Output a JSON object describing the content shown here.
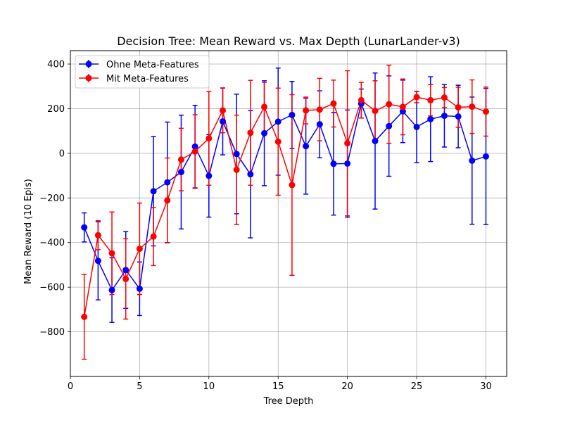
{
  "chart_data": {
    "type": "line",
    "title": "Decision Tree: Mean Reward vs. Max Depth (LunarLander-v3)",
    "xlabel": "Tree Depth",
    "ylabel": "Mean Reward (10 Epis)",
    "xlim": [
      0,
      31.5
    ],
    "ylim": [
      -1000,
      460
    ],
    "xticks": [
      0,
      5,
      10,
      15,
      20,
      25,
      30
    ],
    "yticks": [
      -800,
      -600,
      -400,
      -200,
      0,
      200,
      400
    ],
    "grid": true,
    "legend_position": "upper-left",
    "x": [
      1,
      2,
      3,
      4,
      5,
      6,
      7,
      8,
      9,
      10,
      11,
      12,
      13,
      14,
      15,
      16,
      17,
      18,
      19,
      20,
      21,
      22,
      23,
      24,
      25,
      26,
      27,
      28,
      29,
      30
    ],
    "series": [
      {
        "name": "Ohne Meta-Features",
        "color": "#0000ff",
        "values": [
          -332,
          -482,
          -613,
          -523,
          -607,
          -170,
          -130,
          -84,
          30,
          -101,
          143,
          -3,
          -94,
          90,
          142,
          172,
          32,
          130,
          -47,
          -46,
          223,
          55,
          122,
          188,
          118,
          153,
          168,
          165,
          -33,
          -14
        ],
        "errors": [
          65,
          175,
          145,
          172,
          120,
          245,
          270,
          255,
          185,
          185,
          150,
          268,
          285,
          235,
          240,
          150,
          215,
          150,
          230,
          240,
          65,
          305,
          225,
          140,
          160,
          190,
          140,
          140,
          285,
          305
        ]
      },
      {
        "name": "Mit Meta-Features",
        "color": "#ff0000",
        "values": [
          -733,
          -367,
          -448,
          -563,
          -428,
          -373,
          -211,
          -28,
          8,
          67,
          192,
          -74,
          92,
          208,
          52,
          -142,
          192,
          196,
          223,
          45,
          238,
          190,
          220,
          208,
          252,
          238,
          250,
          206,
          209,
          187
        ],
        "errors": [
          190,
          65,
          185,
          180,
          205,
          130,
          190,
          140,
          165,
          210,
          100,
          245,
          235,
          110,
          240,
          405,
          60,
          140,
          105,
          325,
          80,
          135,
          175,
          125,
          25,
          70,
          45,
          90,
          120,
          110
        ]
      }
    ]
  }
}
